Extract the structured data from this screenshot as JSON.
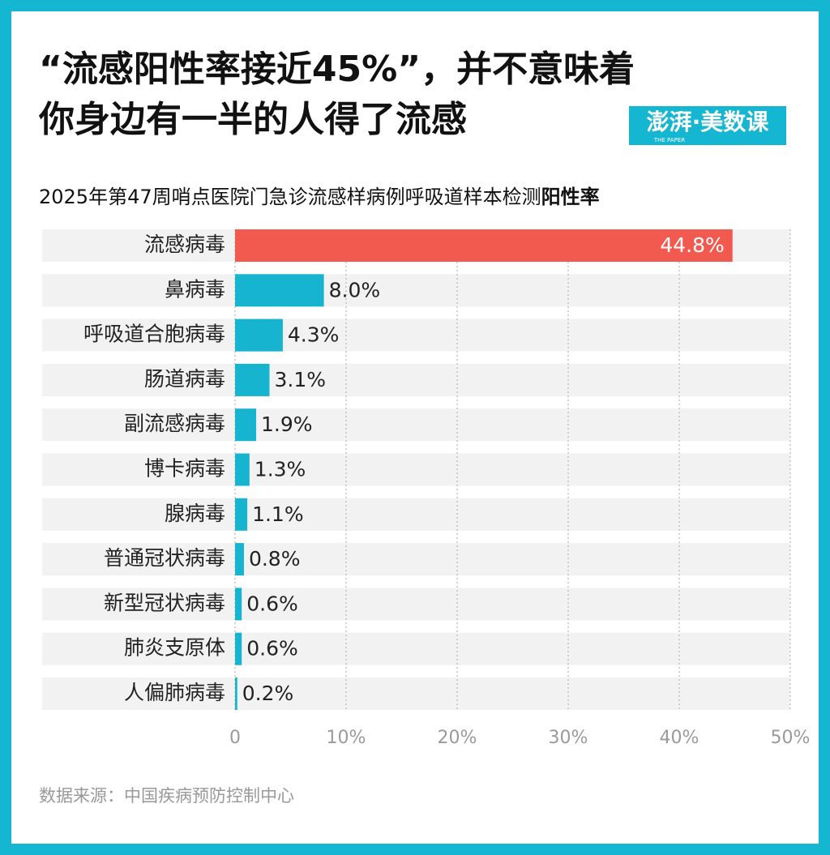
{
  "chart_data": {
    "type": "bar",
    "orientation": "horizontal",
    "title": [
      "“流感阳性率接近45%”，并不意味着",
      "你身边有一半的人得了流感"
    ],
    "brand": "澎湃·美数课",
    "brand_sub": "THE PAPER",
    "subtitle": [
      "2025年第47周哨点医院门急诊流感样病例呼吸道样本检测",
      "阳性率"
    ],
    "categories": [
      "流感病毒",
      "鼻病毒",
      "呼吸道合胞病毒",
      "肠道病毒",
      "副流感病毒",
      "博卡病毒",
      "腺病毒",
      "普通冠状病毒",
      "新型冠状病毒",
      "肺炎支原体",
      "人偏肺病毒"
    ],
    "values": [
      44.8,
      8.0,
      4.3,
      3.1,
      1.9,
      1.3,
      1.1,
      0.8,
      0.6,
      0.6,
      0.2
    ],
    "value_labels": [
      "44.8%",
      "8.0%",
      "4.3%",
      "3.1%",
      "1.9%",
      "1.3%",
      "1.1%",
      "0.8%",
      "0.6%",
      "0.6%",
      "0.2%"
    ],
    "colors": [
      "#f25a50",
      "#17b4cf",
      "#17b4cf",
      "#17b4cf",
      "#17b4cf",
      "#17b4cf",
      "#17b4cf",
      "#17b4cf",
      "#17b4cf",
      "#17b4cf",
      "#17b4cf"
    ],
    "xlim": [
      0,
      50
    ],
    "xticks": [
      0,
      {
        "value": 10,
        "label": "10%"
      },
      {
        "value": 20,
        "label": "20%"
      },
      {
        "value": 30,
        "label": "30%"
      },
      {
        "value": 40,
        "label": "40%"
      },
      {
        "value": 50,
        "label": "50%"
      }
    ],
    "grid": true,
    "source": "数据来源：中国疾病预防控制中心"
  }
}
